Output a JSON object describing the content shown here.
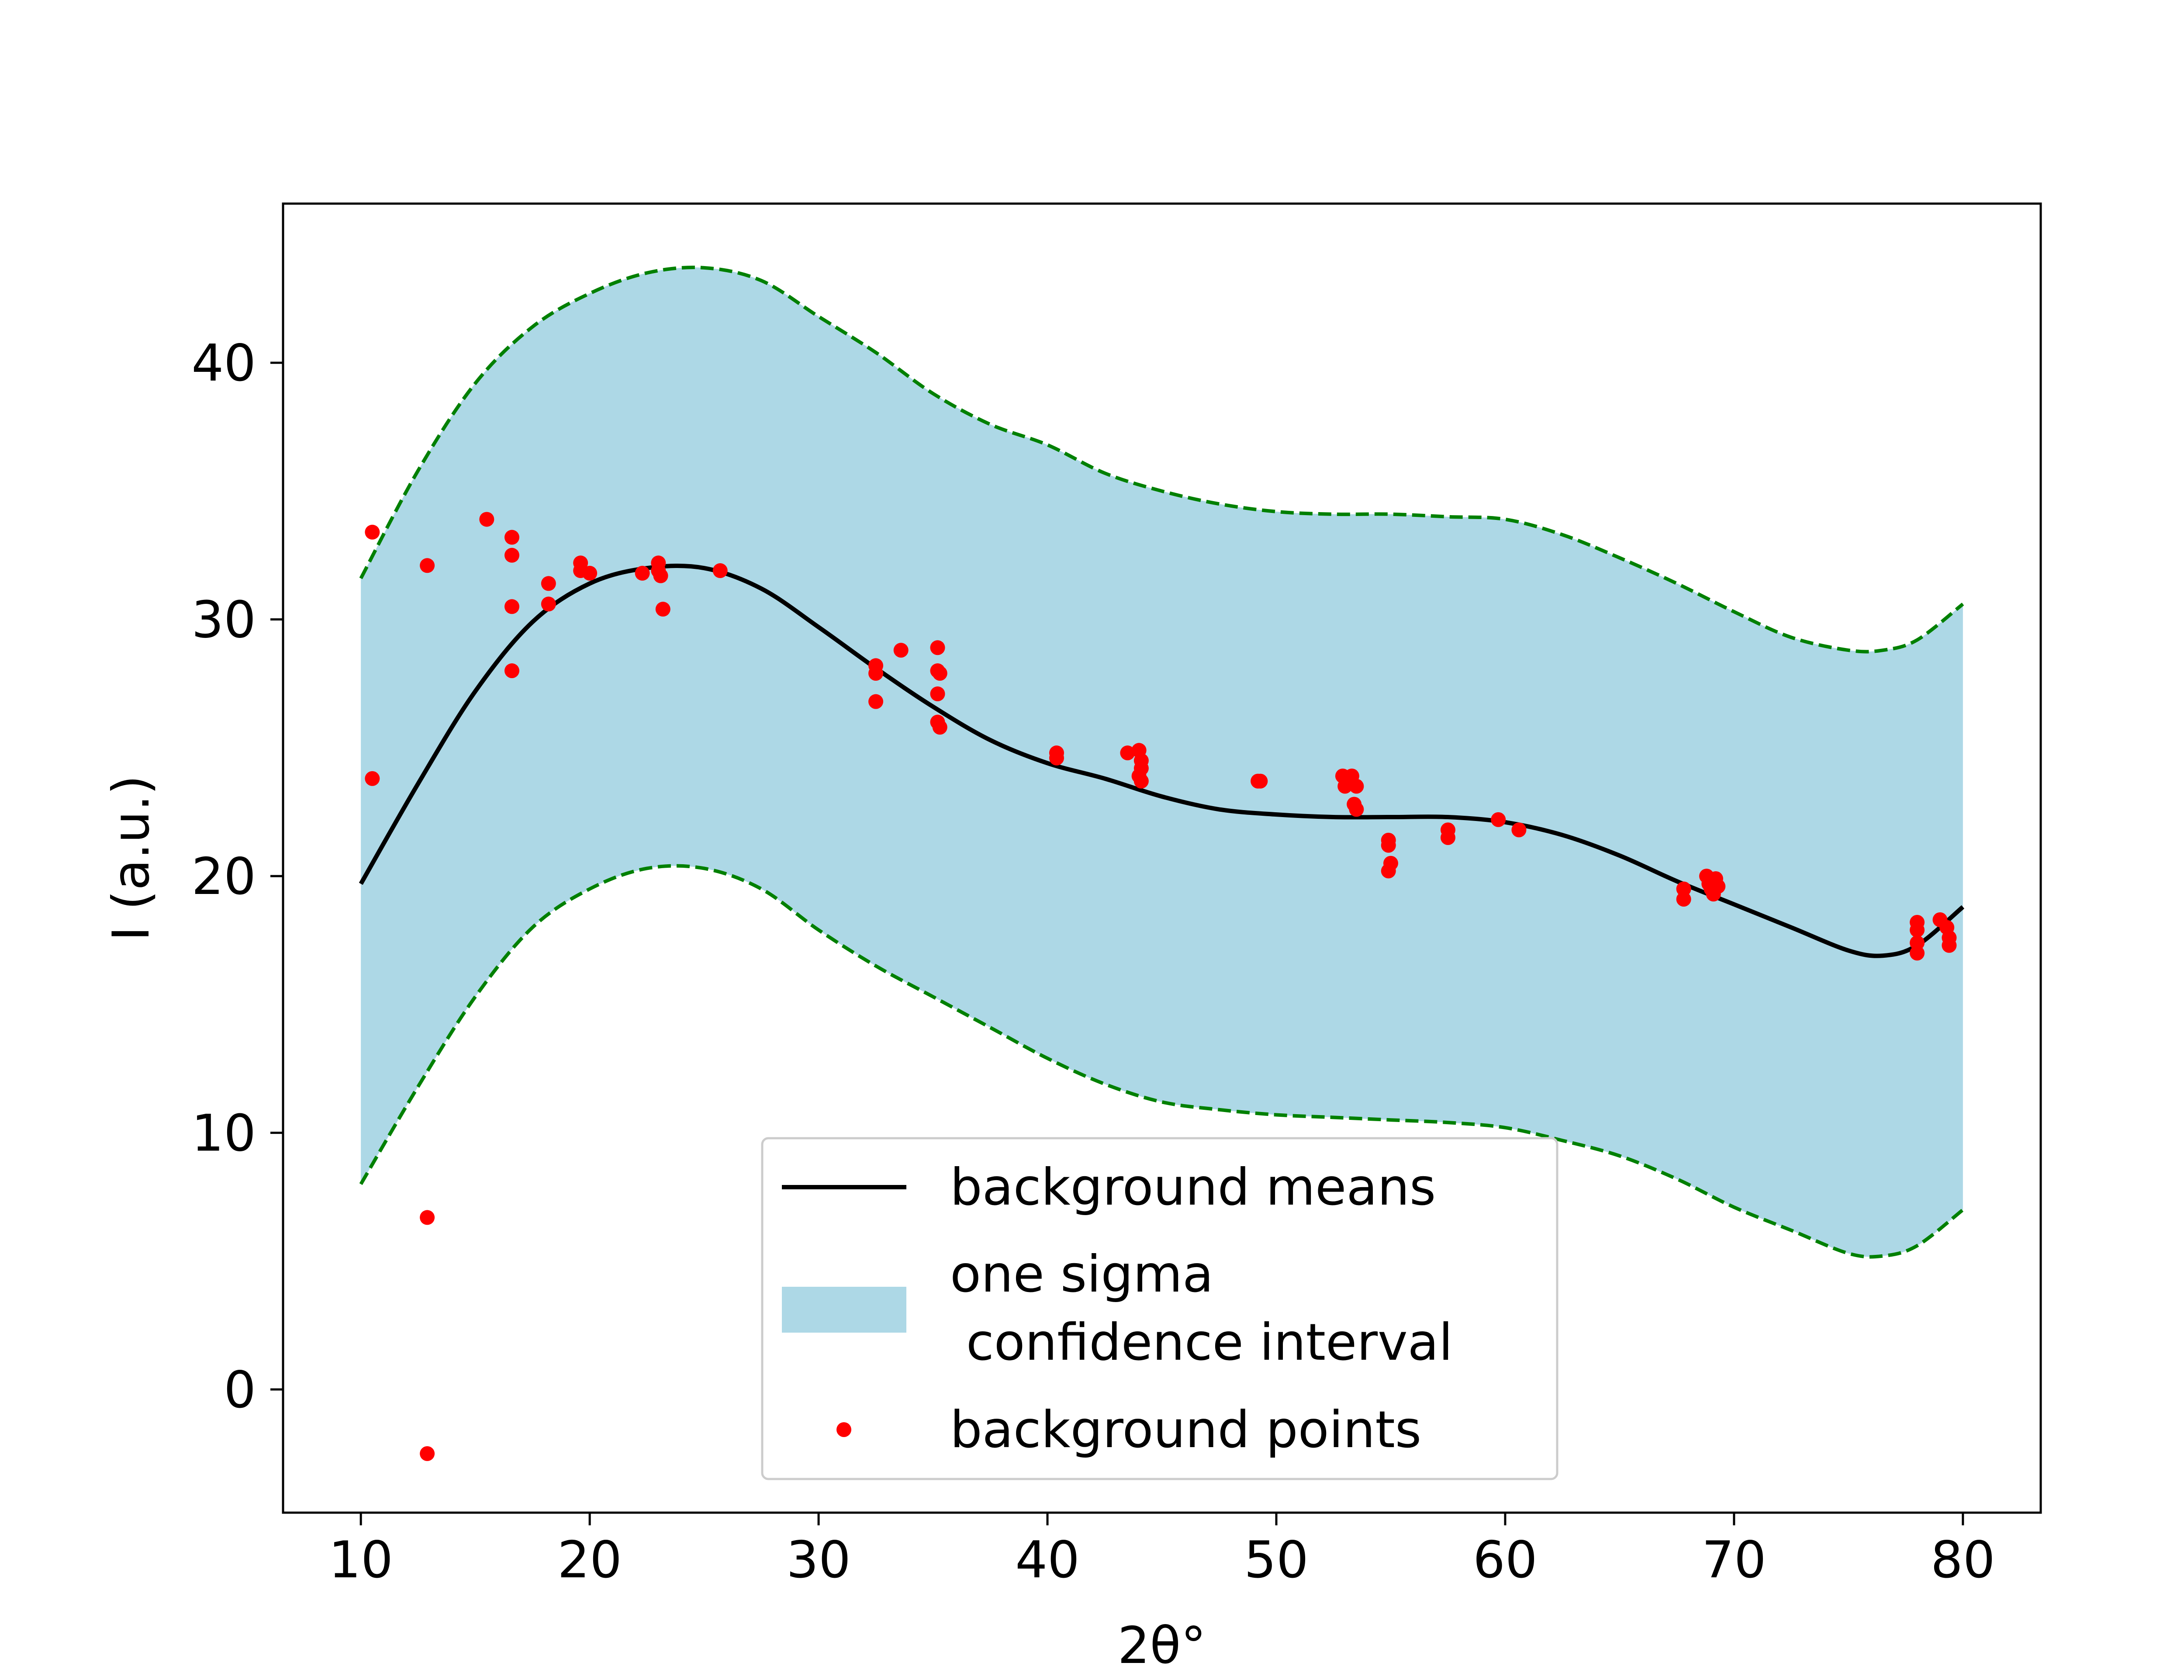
{
  "chart_data": {
    "type": "line",
    "title": "",
    "xlabel": "2θ°",
    "ylabel": "I (a.u.)",
    "xlim": [
      6.6,
      83.4
    ],
    "ylim": [
      -4.8,
      46.2
    ],
    "xticks": [
      10,
      20,
      30,
      40,
      50,
      60,
      70,
      80
    ],
    "yticks": [
      0,
      10,
      20,
      30,
      40
    ],
    "grid": false,
    "legend": {
      "placement": "lower-center",
      "entries": [
        {
          "label": "background means",
          "kind": "line",
          "color": "#000000"
        },
        {
          "label_lines": [
            "one sigma",
            " confidence interval"
          ],
          "kind": "patch",
          "color": "#add8e6"
        },
        {
          "label": "background points",
          "kind": "marker",
          "color": "#ff0000"
        }
      ]
    },
    "colors": {
      "mean": "#000000",
      "band": "#add8e6",
      "band_edge": "#008000",
      "points": "#ff0000"
    },
    "series": [
      {
        "name": "background means",
        "x": [
          10,
          12.5,
          15,
          17.5,
          20,
          22.5,
          25,
          27.5,
          30,
          32.5,
          35,
          37.5,
          40,
          42.5,
          45,
          47.5,
          50,
          52.5,
          55,
          57.5,
          60,
          62.5,
          65,
          67.5,
          70,
          72.5,
          75,
          76.5,
          78,
          80
        ],
        "y": [
          19.7,
          23.6,
          27.2,
          29.9,
          31.4,
          32.0,
          32.0,
          31.2,
          29.7,
          28.1,
          26.6,
          25.3,
          24.4,
          23.8,
          23.1,
          22.6,
          22.4,
          22.3,
          22.3,
          22.3,
          22.1,
          21.6,
          20.8,
          19.8,
          18.9,
          18.0,
          17.1,
          16.9,
          17.3,
          18.8
        ]
      },
      {
        "name": "one sigma\n confidence interval",
        "x": [
          10,
          12.5,
          15,
          17.5,
          20,
          22.5,
          25,
          27.5,
          30,
          32.5,
          35,
          37.5,
          40,
          42.5,
          45,
          47.5,
          50,
          52.5,
          55,
          57.5,
          60,
          62.5,
          65,
          67.5,
          70,
          72.5,
          75,
          76.5,
          78,
          80
        ],
        "upper": [
          31.6,
          35.8,
          39.2,
          41.4,
          42.7,
          43.5,
          43.7,
          43.2,
          41.8,
          40.4,
          38.8,
          37.6,
          36.8,
          35.7,
          35.0,
          34.5,
          34.2,
          34.1,
          34.1,
          34.0,
          33.9,
          33.3,
          32.4,
          31.4,
          30.3,
          29.3,
          28.8,
          28.8,
          29.2,
          30.6
        ],
        "lower": [
          8.0,
          11.8,
          15.3,
          18.0,
          19.5,
          20.3,
          20.3,
          19.5,
          17.9,
          16.5,
          15.3,
          14.1,
          12.9,
          11.9,
          11.2,
          10.9,
          10.7,
          10.6,
          10.5,
          10.4,
          10.2,
          9.7,
          9.1,
          8.2,
          7.1,
          6.2,
          5.3,
          5.2,
          5.6,
          7.0
        ]
      },
      {
        "name": "background points",
        "x": [
          10.5,
          10.5,
          12.9,
          12.9,
          12.9,
          15.5,
          16.6,
          16.6,
          16.6,
          16.6,
          18.2,
          18.2,
          19.6,
          19.6,
          20.0,
          22.3,
          23.0,
          23.0,
          23.1,
          23.2,
          25.7,
          32.5,
          32.5,
          32.5,
          33.6,
          35.2,
          35.2,
          35.3,
          35.2,
          35.2,
          35.3,
          40.4,
          40.4,
          43.5,
          44.0,
          44.1,
          44.1,
          44.0,
          44.1,
          49.2,
          49.3,
          52.9,
          53.0,
          53.3,
          53.5,
          53.4,
          53.5,
          54.9,
          54.9,
          55.0,
          54.9,
          57.5,
          57.5,
          59.7,
          60.6,
          67.8,
          67.8,
          68.8,
          68.9,
          69.0,
          69.2,
          69.3,
          69.1,
          78.0,
          78.0,
          78.0,
          78.0,
          79.0,
          79.3,
          79.4,
          79.4
        ],
        "y": [
          33.4,
          23.8,
          32.1,
          6.7,
          -2.5,
          33.9,
          33.2,
          32.5,
          30.5,
          28.0,
          31.4,
          30.6,
          32.2,
          31.9,
          31.8,
          31.8,
          32.2,
          31.9,
          31.7,
          30.4,
          31.9,
          28.2,
          27.9,
          26.8,
          28.8,
          28.9,
          28.0,
          27.9,
          27.1,
          26.0,
          25.8,
          24.8,
          24.6,
          24.8,
          24.9,
          24.5,
          24.2,
          23.9,
          23.7,
          23.7,
          23.7,
          23.9,
          23.5,
          23.9,
          23.5,
          22.8,
          22.6,
          21.4,
          21.2,
          20.5,
          20.2,
          21.8,
          21.5,
          22.2,
          21.8,
          19.5,
          19.1,
          20.0,
          19.7,
          19.5,
          19.9,
          19.6,
          19.3,
          18.2,
          17.9,
          17.4,
          17.0,
          18.3,
          18.0,
          17.6,
          17.3
        ]
      }
    ]
  }
}
